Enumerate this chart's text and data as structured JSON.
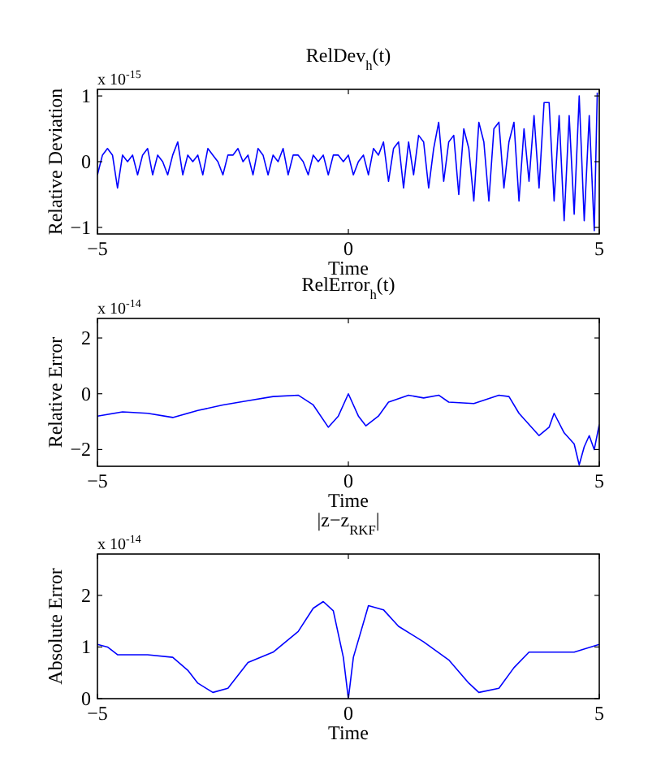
{
  "chart_data": [
    {
      "type": "line",
      "title": "RelDev$_{h}$(t)",
      "xlabel": "Time",
      "ylabel": "Relative Deviation",
      "annotations": [
        "x 10$^{-15}$"
      ],
      "xlim": [
        -5,
        5
      ],
      "xticks": [
        -5,
        0,
        5
      ],
      "ylim": [
        -1.1,
        1.1
      ],
      "yticks": [
        -1,
        0,
        1
      ],
      "x": [
        -5,
        -4.9,
        -4.8,
        -4.7,
        -4.6,
        -4.5,
        -4.4,
        -4.3,
        -4.2,
        -4.1,
        -4,
        -3.9,
        -3.8,
        -3.7,
        -3.6,
        -3.5,
        -3.4,
        -3.3,
        -3.2,
        -3.1,
        -3,
        -2.9,
        -2.8,
        -2.7,
        -2.6,
        -2.5,
        -2.4,
        -2.3,
        -2.2,
        -2.1,
        -2,
        -1.9,
        -1.8,
        -1.7,
        -1.6,
        -1.5,
        -1.4,
        -1.3,
        -1.2,
        -1.1,
        -1,
        -0.9,
        -0.8,
        -0.7,
        -0.6,
        -0.5,
        -0.4,
        -0.3,
        -0.2,
        -0.1,
        0,
        0.1,
        0.2,
        0.3,
        0.4,
        0.5,
        0.6,
        0.7,
        0.8,
        0.9,
        1,
        1.1,
        1.2,
        1.3,
        1.4,
        1.5,
        1.6,
        1.7,
        1.8,
        1.9,
        2,
        2.1,
        2.2,
        2.3,
        2.4,
        2.5,
        2.6,
        2.7,
        2.8,
        2.9,
        3,
        3.1,
        3.2,
        3.3,
        3.4,
        3.5,
        3.6,
        3.7,
        3.8,
        3.9,
        4,
        4.1,
        4.2,
        4.3,
        4.4,
        4.5,
        4.6,
        4.7,
        4.8,
        4.9,
        4.96
      ],
      "series": [
        {
          "color": "#0000ff",
          "values": [
            -0.2,
            0.1,
            0.2,
            0.1,
            -0.4,
            0.1,
            0,
            0.1,
            -0.2,
            0.1,
            0.2,
            -0.2,
            0.1,
            0,
            -0.2,
            0.1,
            0.3,
            -0.2,
            0.1,
            0,
            0.1,
            -0.2,
            0.2,
            0.1,
            0,
            -0.2,
            0.1,
            0.1,
            0.2,
            0,
            0.1,
            -0.2,
            0.2,
            0.1,
            -0.2,
            0.1,
            0,
            0.2,
            -0.2,
            0.1,
            0.1,
            0,
            -0.2,
            0.1,
            0,
            0.1,
            -0.2,
            0.1,
            0.1,
            0,
            0.1,
            -0.2,
            0,
            0.1,
            -0.2,
            0.2,
            0.1,
            0.3,
            -0.3,
            0.2,
            0.3,
            -0.4,
            0.3,
            -0.2,
            0.4,
            0.3,
            -0.4,
            0.2,
            0.6,
            -0.3,
            0.3,
            0.4,
            -0.5,
            0.5,
            0.2,
            -0.6,
            0.6,
            0.3,
            -0.6,
            0.5,
            0.6,
            -0.4,
            0.3,
            0.6,
            -0.6,
            0.5,
            -0.3,
            0.7,
            -0.4,
            0.9,
            0.9,
            -0.6,
            0.7,
            -0.9,
            0.7,
            -0.8,
            1.0,
            -0.9,
            0.7,
            -1.05,
            1.05
          ]
        }
      ]
    },
    {
      "type": "line",
      "title": "RelError$_{h}$(t)",
      "xlabel": "Time",
      "ylabel": "Relative Error",
      "annotations": [
        "x 10$^{-14}$"
      ],
      "xlim": [
        -5,
        5
      ],
      "xticks": [
        -5,
        0,
        5
      ],
      "ylim": [
        -2.6,
        2.7
      ],
      "yticks": [
        -2,
        0,
        2
      ],
      "x": [
        -5,
        -4.5,
        -4,
        -3.5,
        -3,
        -2.5,
        -2,
        -1.5,
        -1,
        -0.7,
        -0.4,
        -0.2,
        0,
        0.2,
        0.35,
        0.6,
        0.8,
        1.2,
        1.5,
        1.8,
        2,
        2.5,
        3,
        3.2,
        3.4,
        3.6,
        3.8,
        4,
        4.1,
        4.3,
        4.5,
        4.6,
        4.7,
        4.8,
        4.9,
        5
      ],
      "series": [
        {
          "color": "#0000ff",
          "values": [
            -0.8,
            -0.65,
            -0.7,
            -0.85,
            -0.6,
            -0.4,
            -0.25,
            -0.1,
            -0.05,
            -0.4,
            -1.2,
            -0.8,
            0,
            -0.8,
            -1.15,
            -0.8,
            -0.3,
            -0.05,
            -0.15,
            -0.05,
            -0.3,
            -0.35,
            -0.05,
            -0.1,
            -0.7,
            -1.1,
            -1.5,
            -1.2,
            -0.7,
            -1.4,
            -1.8,
            -2.55,
            -1.9,
            -1.5,
            -2.0,
            -1.1
          ]
        }
      ]
    },
    {
      "type": "line",
      "title": "|z−z$_{RKF}$|",
      "xlabel": "Time",
      "ylabel": "Absolute Error",
      "annotations": [
        "x 10$^{-14}$"
      ],
      "xlim": [
        -5,
        5
      ],
      "xticks": [
        -5,
        0,
        5
      ],
      "ylim": [
        0,
        2.8
      ],
      "yticks": [
        0,
        1,
        2
      ],
      "x": [
        -5,
        -4.8,
        -4.6,
        -4,
        -3.5,
        -3.2,
        -3,
        -2.7,
        -2.4,
        -2,
        -1.5,
        -1,
        -0.7,
        -0.5,
        -0.3,
        -0.1,
        0,
        0.1,
        0.4,
        0.7,
        1,
        1.5,
        2,
        2.4,
        2.6,
        3,
        3.3,
        3.6,
        4,
        4.5,
        5
      ],
      "series": [
        {
          "color": "#0000ff",
          "values": [
            1.05,
            1.0,
            0.85,
            0.85,
            0.8,
            0.55,
            0.3,
            0.12,
            0.2,
            0.7,
            0.9,
            1.3,
            1.75,
            1.88,
            1.7,
            0.8,
            0,
            0.8,
            1.8,
            1.72,
            1.4,
            1.1,
            0.75,
            0.3,
            0.12,
            0.2,
            0.6,
            0.9,
            0.9,
            0.9,
            1.05
          ]
        }
      ]
    }
  ]
}
